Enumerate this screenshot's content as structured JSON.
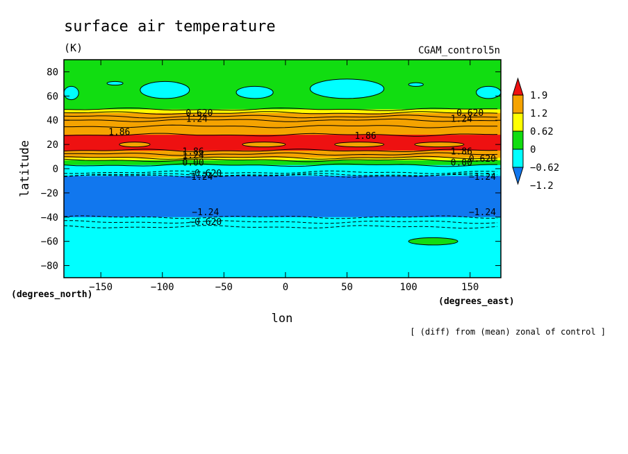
{
  "title": "surface air temperature",
  "units": "(K)",
  "dataset": "CGAM_control5n",
  "note": "[ (diff) from (mean) zonal of control ]",
  "colors": {
    "red": "#ee1111",
    "orange": "#f5a300",
    "yellow": "#ffff00",
    "green": "#11dd11",
    "cyan": "#00ffff",
    "blue": "#1177ee"
  },
  "chart_data": {
    "type": "heatmap",
    "title": "surface air temperature",
    "units": "(K)",
    "dataset": "CGAM_control5n",
    "xlabel": "lon",
    "ylabel": "latitude",
    "x_unit_label": "(degrees_east)",
    "y_unit_label": "(degrees_north)",
    "xlim": [
      -180,
      175
    ],
    "ylim": [
      -90,
      90
    ],
    "x_ticks": [
      -150,
      -100,
      -50,
      0,
      50,
      100,
      150
    ],
    "x_tick_labels": [
      "−150",
      "−100",
      "−50",
      "0",
      "50",
      "100",
      "150"
    ],
    "y_ticks": [
      80,
      60,
      40,
      20,
      0,
      -20,
      -40,
      -60,
      -80
    ],
    "y_tick_labels": [
      "80",
      "60",
      "40",
      "20",
      "0",
      "−20",
      "−40",
      "−60",
      "−80"
    ],
    "colorbar": {
      "levels": [
        "1.9",
        "1.2",
        "0.62",
        "0",
        "−0.62",
        "−1.2"
      ],
      "colors": [
        "#ee1111",
        "#f5a300",
        "#ffff00",
        "#11dd11",
        "#00ffff",
        "#1177ee"
      ]
    },
    "bands": [
      {
        "lat_top": 90,
        "lat_bottom": 49,
        "color": "green"
      },
      {
        "lat_top": 49,
        "lat_bottom": 46,
        "color": "yellow"
      },
      {
        "lat_top": 46,
        "lat_bottom": 28,
        "color": "orange"
      },
      {
        "lat_top": 28,
        "lat_bottom": 15,
        "color": "red"
      },
      {
        "lat_top": 15,
        "lat_bottom": 9,
        "color": "orange"
      },
      {
        "lat_top": 9,
        "lat_bottom": 7,
        "color": "yellow"
      },
      {
        "lat_top": 7,
        "lat_bottom": 3,
        "color": "green"
      },
      {
        "lat_top": 3,
        "lat_bottom": -6,
        "color": "cyan"
      },
      {
        "lat_top": -6,
        "lat_bottom": -40,
        "color": "blue"
      },
      {
        "lat_top": -40,
        "lat_bottom": -90,
        "color": "cyan"
      }
    ],
    "patches": [
      {
        "lon": [
          -180,
          -168
        ],
        "lat": [
          57,
          68
        ],
        "color": "cyan"
      },
      {
        "lon": [
          -145,
          -132
        ],
        "lat": [
          69,
          72
        ],
        "color": "cyan"
      },
      {
        "lon": [
          -118,
          -78
        ],
        "lat": [
          58,
          72
        ],
        "color": "cyan"
      },
      {
        "lon": [
          -40,
          -10
        ],
        "lat": [
          58,
          68
        ],
        "color": "cyan"
      },
      {
        "lon": [
          20,
          80
        ],
        "lat": [
          58,
          74
        ],
        "color": "cyan"
      },
      {
        "lon": [
          100,
          112
        ],
        "lat": [
          68,
          71
        ],
        "color": "cyan"
      },
      {
        "lon": [
          155,
          175
        ],
        "lat": [
          58,
          68
        ],
        "color": "cyan"
      },
      {
        "lon": [
          -135,
          -110
        ],
        "lat": [
          18,
          22
        ],
        "color": "orange"
      },
      {
        "lon": [
          -35,
          0
        ],
        "lat": [
          18,
          22
        ],
        "color": "orange"
      },
      {
        "lon": [
          40,
          80
        ],
        "lat": [
          18,
          22
        ],
        "color": "orange"
      },
      {
        "lon": [
          105,
          145
        ],
        "lat": [
          18,
          22
        ],
        "color": "orange"
      },
      {
        "lon": [
          100,
          140
        ],
        "lat": [
          -63,
          -57
        ],
        "color": "green"
      }
    ],
    "contour_labels": [
      {
        "text": "0.620",
        "lon": -70,
        "lat": 46
      },
      {
        "text": "1.24",
        "lon": -72,
        "lat": 41
      },
      {
        "text": "1.86",
        "lon": -135,
        "lat": 30
      },
      {
        "text": "1.86",
        "lon": 65,
        "lat": 27
      },
      {
        "text": "0.620",
        "lon": 150,
        "lat": 46
      },
      {
        "text": "1.24",
        "lon": 143,
        "lat": 41
      },
      {
        "text": "1.86",
        "lon": -75,
        "lat": 14
      },
      {
        "text": "1.86",
        "lon": 143,
        "lat": 14
      },
      {
        "text": "1.24",
        "lon": -75,
        "lat": 11
      },
      {
        "text": "0.620",
        "lon": 160,
        "lat": 8
      },
      {
        "text": "0.00",
        "lon": -75,
        "lat": 5
      },
      {
        "text": "0.00",
        "lon": 143,
        "lat": 5
      },
      {
        "text": "−0.620",
        "lon": -65,
        "lat": -4
      },
      {
        "text": "−1.24",
        "lon": -70,
        "lat": -7
      },
      {
        "text": "−1.24",
        "lon": 160,
        "lat": -7
      },
      {
        "text": "−1.24",
        "lon": -65,
        "lat": -36
      },
      {
        "text": "−1.24",
        "lon": 160,
        "lat": -36
      },
      {
        "text": "−0.620",
        "lon": -65,
        "lat": -44
      }
    ],
    "contours": [
      {
        "lat": 49,
        "dashed": false
      },
      {
        "lat": 46,
        "dashed": false
      },
      {
        "lat": 43,
        "dashed": false
      },
      {
        "lat": 40,
        "dashed": false
      },
      {
        "lat": 35,
        "dashed": false
      },
      {
        "lat": 28,
        "dashed": false
      },
      {
        "lat": 15,
        "dashed": false
      },
      {
        "lat": 12,
        "dashed": false
      },
      {
        "lat": 9,
        "dashed": false
      },
      {
        "lat": 7,
        "dashed": false
      },
      {
        "lat": 3,
        "dashed": false
      },
      {
        "lat": -3,
        "dashed": true
      },
      {
        "lat": -5,
        "dashed": true
      },
      {
        "lat": -6,
        "dashed": true
      },
      {
        "lat": -40,
        "dashed": true
      },
      {
        "lat": -44,
        "dashed": true
      },
      {
        "lat": -48,
        "dashed": true
      }
    ]
  }
}
